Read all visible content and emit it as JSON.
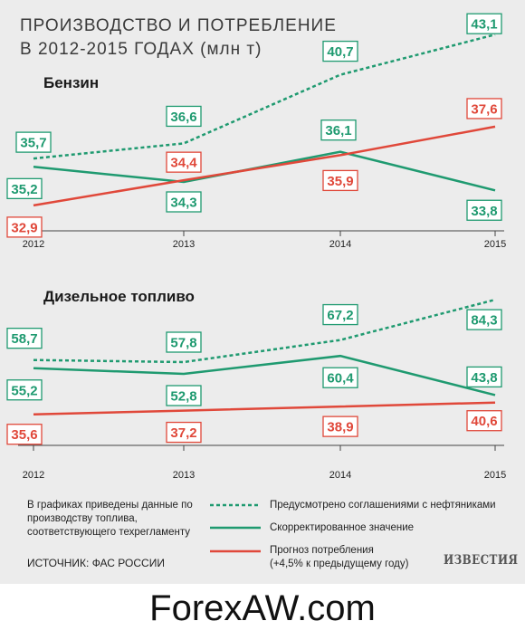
{
  "header": {
    "title_line1": "ПРОИЗВОДСТВО И ПОТРЕБЛЕНИЕ",
    "title_line2": "В 2012-2015 ГОДАХ",
    "title_unit": "(млн т)"
  },
  "colors": {
    "agreements": "#1f9a70",
    "corrected": "#1f9a70",
    "forecast": "#e0483a",
    "axis": "#444444"
  },
  "chart_data": [
    {
      "type": "line",
      "title": "Бензин",
      "x": [
        "2012",
        "2013",
        "2014",
        "2015"
      ],
      "series": [
        {
          "name": "Предусмотрено соглашениями с нефтяниками",
          "style": "dashed",
          "values": [
            35.7,
            36.6,
            40.7,
            43.1
          ]
        },
        {
          "name": "Скорректированное значение",
          "style": "solid",
          "values": [
            35.2,
            34.3,
            36.1,
            33.8
          ]
        },
        {
          "name": "Прогноз потребления (+4,5% к предыдущему году)",
          "style": "solid",
          "values": [
            32.9,
            34.4,
            35.9,
            37.6
          ]
        }
      ],
      "value_labels": {
        "agreements": [
          "35,7",
          "36,6",
          "40,7",
          "43,1"
        ],
        "corrected": [
          "35,2",
          "34,3",
          "36,1",
          "33,8"
        ],
        "forecast": [
          "32,9",
          "34,4",
          "35,9",
          "37,6"
        ]
      }
    },
    {
      "type": "line",
      "title": "Дизельное топливо",
      "x": [
        "2012",
        "2013",
        "2014",
        "2015"
      ],
      "series": [
        {
          "name": "Предусмотрено соглашениями с нефтяниками",
          "style": "dashed",
          "values": [
            58.7,
            57.8,
            67.2,
            84.3
          ]
        },
        {
          "name": "Скорректированное значение",
          "style": "solid",
          "values": [
            55.2,
            52.8,
            60.4,
            43.8
          ]
        },
        {
          "name": "Прогноз потребления (+4,5% к предыдущему году)",
          "style": "solid",
          "values": [
            35.6,
            37.2,
            38.9,
            40.6
          ]
        }
      ],
      "value_labels": {
        "agreements": [
          "58,7",
          "57,8",
          "67,2",
          "84,3"
        ],
        "corrected": [
          "55,2",
          "52,8",
          "60,4",
          "43,8"
        ],
        "forecast": [
          "35,6",
          "37,2",
          "38,9",
          "40,6"
        ]
      }
    }
  ],
  "legend": {
    "note": "В графиках приведены данные по производству топлива, соответствующего техрегламенту",
    "items": [
      {
        "label": "Предусмотрено соглашениями с нефтяниками",
        "style": "dashed",
        "color": "#1f9a70"
      },
      {
        "label": "Скорректированное значение",
        "style": "solid",
        "color": "#1f9a70"
      },
      {
        "label_line1": "Прогноз потребления",
        "label_line2": "(+4,5% к предыдущему году)",
        "style": "solid",
        "color": "#e0483a"
      }
    ]
  },
  "source": "ИСТОЧНИК: ФАС РОССИИ",
  "logo_text": "ИЗВЕСТИЯ",
  "watermark": "ForexAW.com"
}
